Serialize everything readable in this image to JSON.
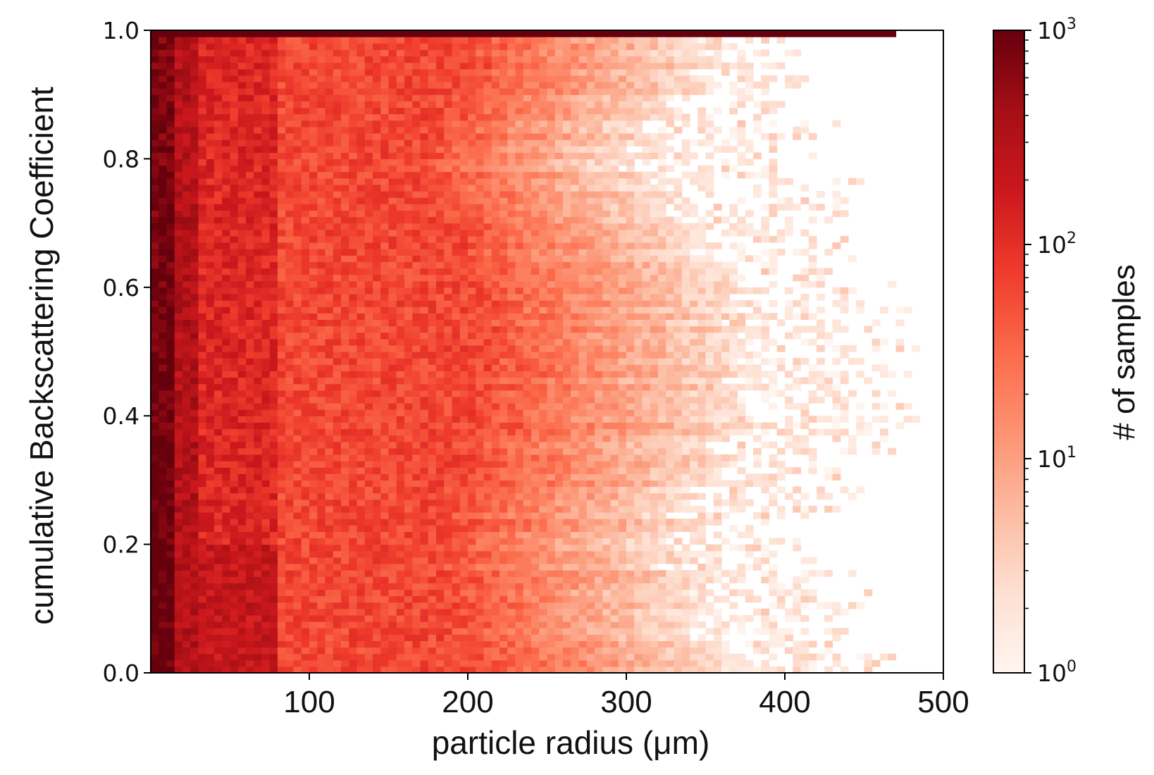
{
  "chart_data": {
    "type": "heatmap",
    "xlabel": "particle radius (μm)",
    "ylabel": "cumulative Backscattering Coefficient",
    "xlim": [
      0,
      500
    ],
    "ylim": [
      0.0,
      1.0
    ],
    "x_ticks": [
      100,
      200,
      300,
      400,
      500
    ],
    "x_tick_labels": [
      "100",
      "200",
      "300",
      "400",
      "500"
    ],
    "y_ticks": [
      0.0,
      0.2,
      0.4,
      0.6,
      0.8,
      1.0
    ],
    "y_tick_labels": [
      "0.0",
      "0.2",
      "0.4",
      "0.6",
      "0.8",
      "1.0"
    ],
    "bin_width_x": 5,
    "bin_height_y": 0.01,
    "colormap": "Reds",
    "colorscale": "log",
    "colorbar": {
      "label": "# of samples",
      "range": [
        1,
        1000
      ],
      "ticks": [
        {
          "value": 1,
          "base": "10",
          "exp": "0"
        },
        {
          "value": 10,
          "base": "10",
          "exp": "1"
        },
        {
          "value": 100,
          "base": "10",
          "exp": "2"
        },
        {
          "value": 1000,
          "base": "10",
          "exp": "3"
        }
      ],
      "colors": [
        "#fff5f0",
        "#fee0d2",
        "#fcbba1",
        "#fc9272",
        "#fb6a4a",
        "#ef3b2c",
        "#cb181d",
        "#a50f15",
        "#67000d"
      ]
    },
    "profile_note_free": true,
    "count_profile": {
      "x_edge_full_coverage": [
        {
          "y": 0.0,
          "x": 360
        },
        {
          "y": 0.2,
          "x": 330
        },
        {
          "y": 0.4,
          "x": 380
        },
        {
          "y": 0.6,
          "x": 370
        },
        {
          "y": 0.8,
          "x": 310
        },
        {
          "y": 0.95,
          "x": 360
        }
      ],
      "x_edge_sparse": [
        {
          "y": 0.0,
          "x": 465
        },
        {
          "y": 0.2,
          "x": 410
        },
        {
          "y": 0.4,
          "x": 465
        },
        {
          "y": 0.6,
          "x": 455
        },
        {
          "y": 0.8,
          "x": 420
        },
        {
          "y": 0.95,
          "x": 400
        }
      ],
      "top_row": {
        "y_min": 0.99,
        "y_max": 1.0,
        "x_max": 470,
        "count": 1000
      },
      "left_column_count": 700,
      "bulk_count": 60
    }
  }
}
